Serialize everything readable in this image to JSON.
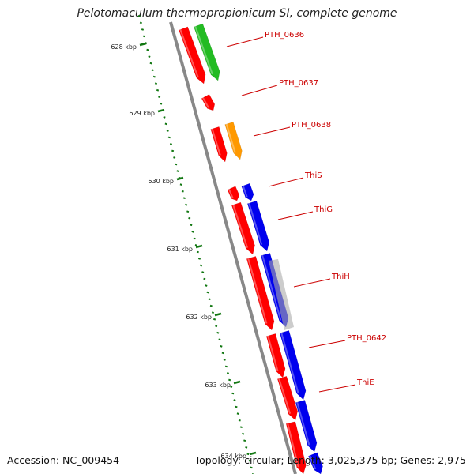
{
  "title": "Pelotomaculum thermopropionicum SI, complete genome",
  "footer": {
    "accession": "Accession: NC_009454",
    "topology": "Topology: circular; Length: 3,025,375 bp; Genes: 2,975"
  },
  "scale": {
    "ticks": [
      "628 kbp",
      "629 kbp",
      "630 kbp",
      "631 kbp",
      "632 kbp",
      "633 kbp",
      "634 kbp"
    ]
  },
  "labels": [
    "PTH_0636",
    "PTH_0637",
    "PTH_0638",
    "ThiS",
    "ThiG",
    "ThiH",
    "PTH_0642",
    "ThiE"
  ],
  "colors": {
    "red": "#ff0000",
    "green": "#22bb22",
    "orange": "#ff9900",
    "blue": "#0000ee",
    "gray": "#aaaaaa",
    "backbone": "#888888",
    "tick": "#117711",
    "label": "#cc0000"
  }
}
